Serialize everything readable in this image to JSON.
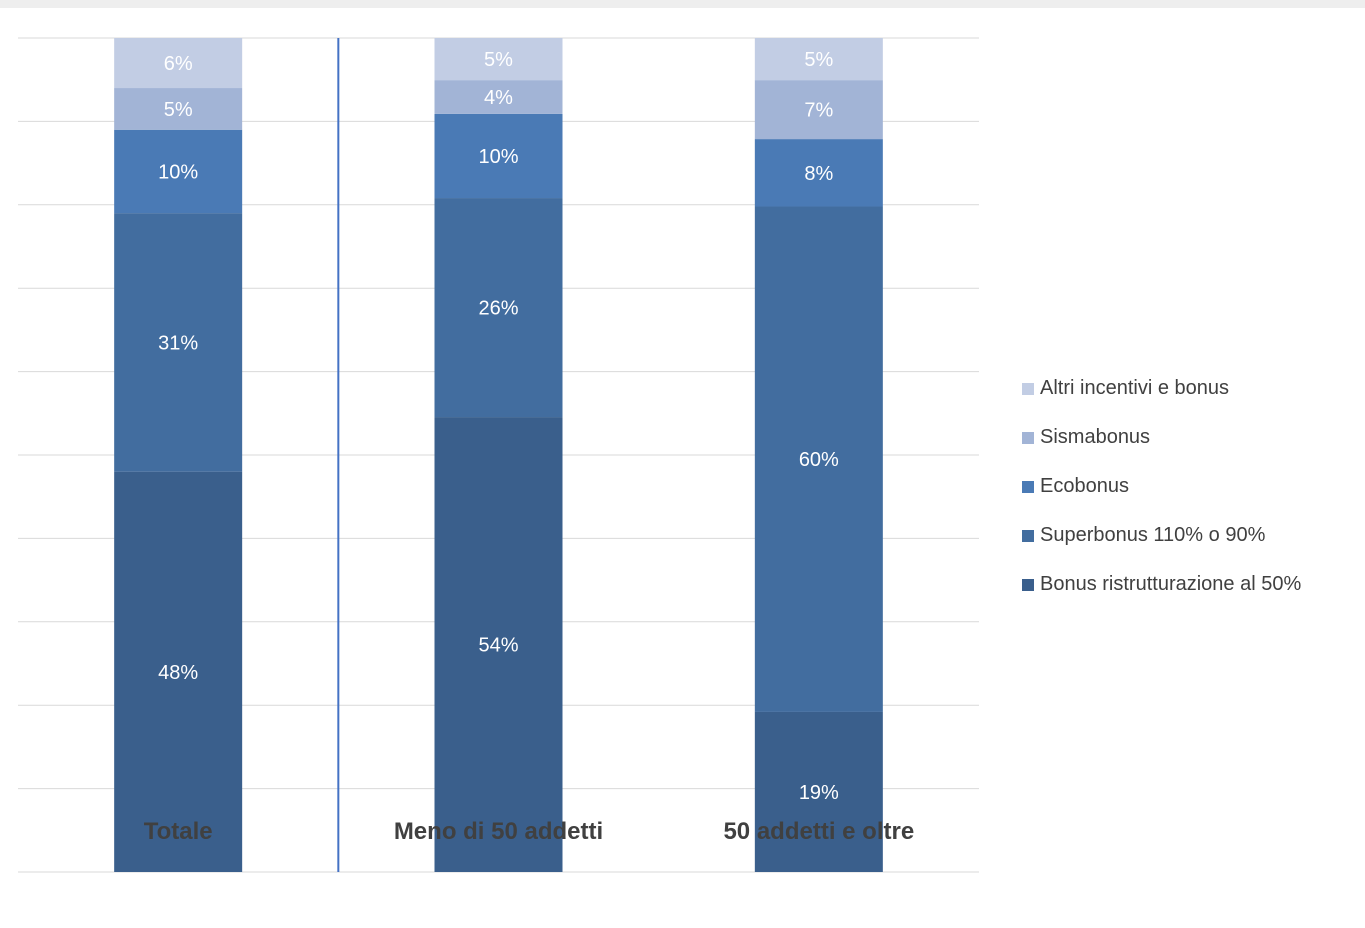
{
  "chart_data": {
    "type": "bar",
    "stacked": true,
    "normalized": true,
    "categories": [
      "Totale",
      "Meno di 50 addetti",
      "50 addetti e oltre"
    ],
    "series": [
      {
        "name": "Bonus ristrutturazione al 50%",
        "color": "#3a5f8c",
        "values": [
          48,
          54,
          19
        ],
        "labels": [
          "48%",
          "54%",
          "19%"
        ]
      },
      {
        "name": "Superbonus 110% o 90%",
        "color": "#426d9f",
        "values": [
          31,
          26,
          60
        ],
        "labels": [
          "31%",
          "26%",
          "60%"
        ]
      },
      {
        "name": "Ecobonus",
        "color": "#4a7ab5",
        "values": [
          10,
          10,
          8
        ],
        "labels": [
          "10%",
          "10%",
          "8%"
        ]
      },
      {
        "name": "Sismabonus",
        "color": "#a2b4d6",
        "values": [
          5,
          4,
          7
        ],
        "labels": [
          "5%",
          "4%",
          "7%"
        ]
      },
      {
        "name": "Altri incentivi e bonus",
        "color": "#c2cde4",
        "values": [
          6,
          5,
          5
        ],
        "labels": [
          "6%",
          "5%",
          "5%"
        ]
      }
    ],
    "ylim": [
      0,
      100
    ],
    "grid": true,
    "legend_position": "right",
    "separator_after_category": 0,
    "separator_color": "#4472c4",
    "gridline_color": "#d9d9d9",
    "category_label_color": "#404040",
    "data_label_color": "#ffffff"
  }
}
